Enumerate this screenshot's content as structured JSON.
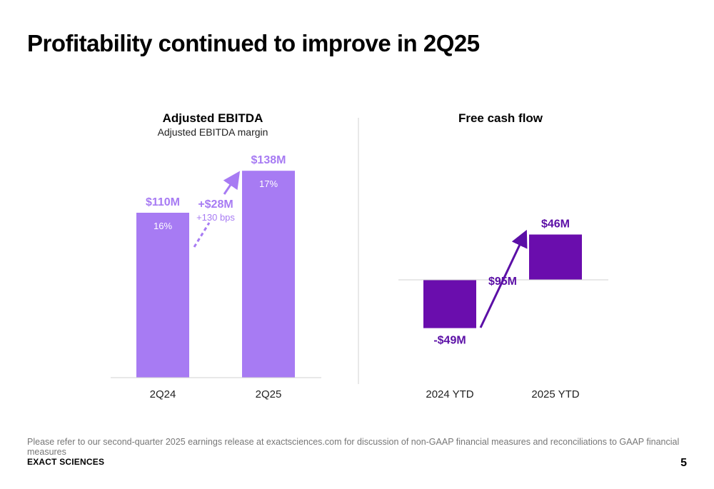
{
  "page": {
    "title": "Profitability continued to improve in 2Q25",
    "footnote": "Please refer to our second-quarter 2025 earnings release at exactsciences.com for discussion of non-GAAP financial measures and reconciliations to GAAP financial measures",
    "brand": "EXACT SCIENCES",
    "page_number": "5"
  },
  "colors": {
    "ebitda_bar": "#a77bf3",
    "ebitda_text": "#a77bf3",
    "fcf_bar": "#6a0dad",
    "fcf_text": "#5b0fa6",
    "axis": "#d0d0d0",
    "divider": "#d0d0d0"
  },
  "chart_data": [
    {
      "type": "bar",
      "title": "Adjusted EBITDA",
      "subtitle": "Adjusted EBITDA margin",
      "categories": [
        "2Q24",
        "2Q25"
      ],
      "values": [
        110,
        138
      ],
      "value_labels": [
        "$110M",
        "$138M"
      ],
      "margin_labels": [
        "16%",
        "17%"
      ],
      "units": "$M",
      "ylim": [
        0,
        150
      ],
      "annotation": {
        "label": "+$28M",
        "sublabel": "+130 bps"
      },
      "grid": false,
      "legend": "none"
    },
    {
      "type": "bar",
      "title": "Free cash flow",
      "categories": [
        "2024 YTD",
        "2025 YTD"
      ],
      "values": [
        -49,
        46
      ],
      "value_labels": [
        "-$49M",
        "$46M"
      ],
      "units": "$M",
      "ylim": [
        -70,
        75
      ],
      "annotation": {
        "label": "$95M"
      },
      "grid": false,
      "legend": "none"
    }
  ]
}
